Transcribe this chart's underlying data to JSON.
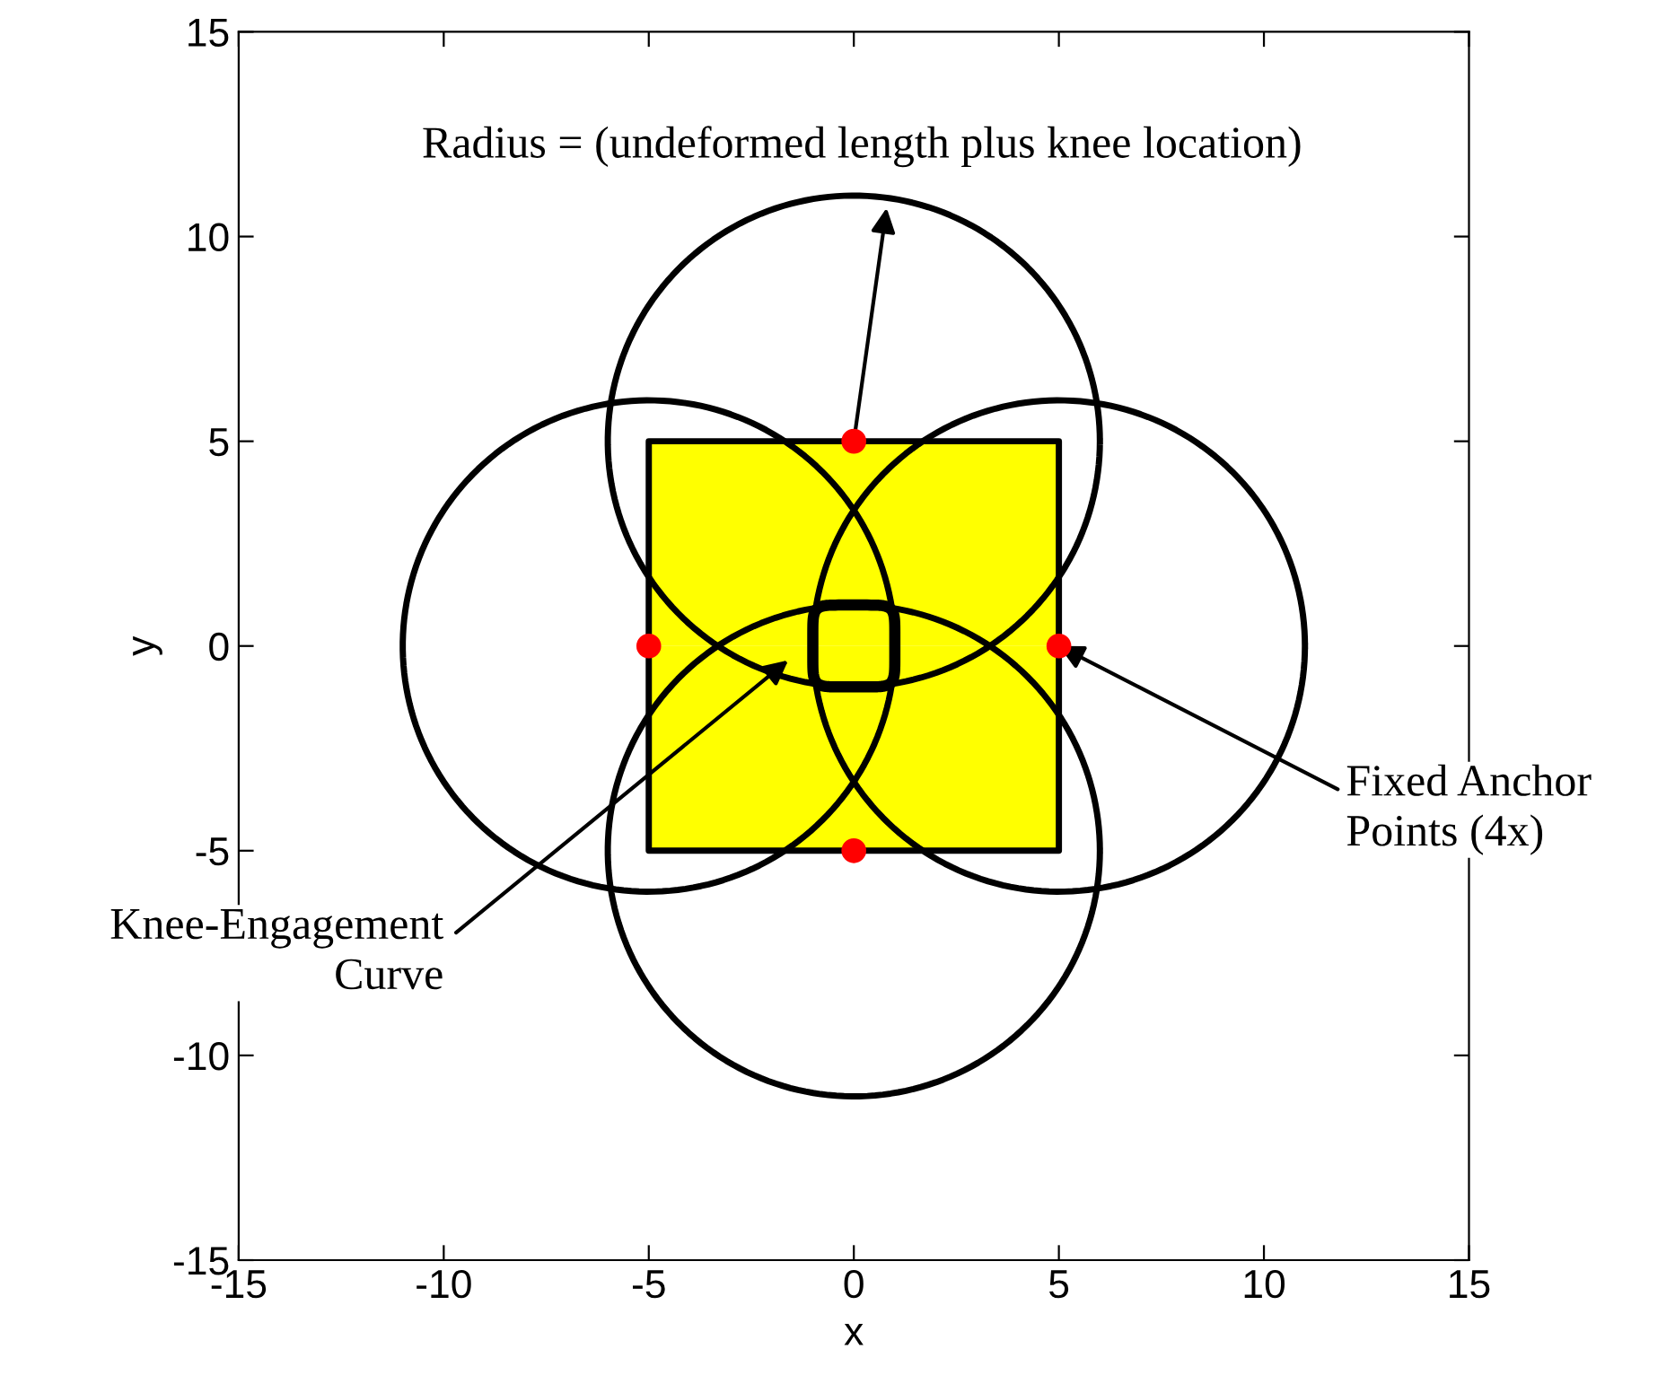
{
  "chart_data": {
    "type": "area",
    "xlabel": "x",
    "ylabel": "y",
    "xlim": [
      -15,
      15
    ],
    "ylim": [
      -15,
      15
    ],
    "xticks": [
      -15,
      -10,
      -5,
      0,
      5,
      10,
      15
    ],
    "yticks": [
      -15,
      -10,
      -5,
      0,
      5,
      10,
      15
    ],
    "grid": false,
    "legend": false,
    "series": [
      {
        "color": "#ffff00",
        "x": [
          -5,
          5
        ],
        "values": [
          5,
          5
        ]
      },
      {
        "color": "#ffff00",
        "x": [
          -5,
          5
        ],
        "values": [
          -5,
          -5
        ]
      },
      {
        "type": "scatter",
        "color": "#ff0000",
        "marker": "circle",
        "x": [
          0,
          5,
          0,
          -5
        ],
        "values": [
          5,
          0,
          -5,
          0
        ]
      }
    ],
    "annotations": [
      {
        "text": "Radius = (undeformed length plus knee location)",
        "x": 0,
        "y": 5
      },
      {
        "text": "Fixed Anchor\nPoints (4x)",
        "x": 5,
        "y": 0
      },
      "Knee-Engagement\nCurve"
    ]
  }
}
